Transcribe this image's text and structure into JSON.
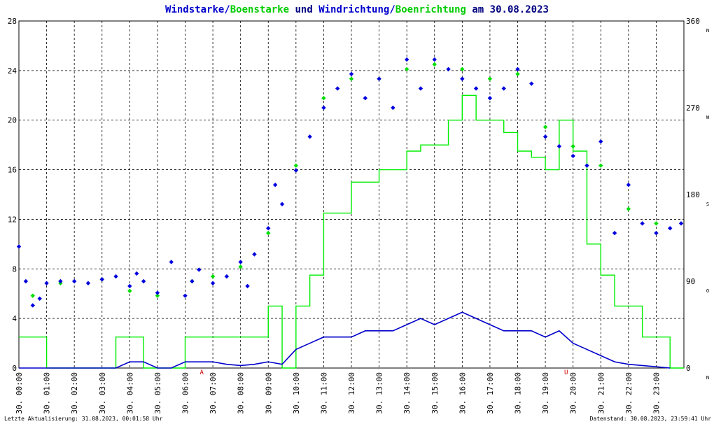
{
  "title": {
    "parts": [
      {
        "text": "Windstarke",
        "color": "#0000cc"
      },
      {
        "text": "/",
        "color": "#0000cc"
      },
      {
        "text": "Boenstarke",
        "color": "#00cc00"
      },
      {
        "text": " und ",
        "color": "#000080"
      },
      {
        "text": "Windrichtung",
        "color": "#0000cc"
      },
      {
        "text": "/",
        "color": "#0000cc"
      },
      {
        "text": "Boenrichtung",
        "color": "#00cc00"
      },
      {
        "text": " am 30.08.2023",
        "color": "#000080"
      }
    ]
  },
  "footer": {
    "left": "Letzte Aktualisierung: 31.08.2023, 00:01:58 Uhr",
    "right": "Datenstand: 30.08.2023, 23:59:41 Uhr"
  },
  "colors": {
    "wind": "#0000cc",
    "gust": "#00ee00",
    "dir_wind": "#0000dd",
    "dir_gust": "#00dd00",
    "grid": "#000000",
    "marker": "#cc0000"
  },
  "chart_data": {
    "type": "line",
    "xlim": [
      0,
      24
    ],
    "x_ticks": [
      "30. 00:00",
      "30. 01:00",
      "30. 02:00",
      "30. 03:00",
      "30. 04:00",
      "30. 05:00",
      "30. 06:00",
      "30. 07:00",
      "30. 08:00",
      "30. 09:00",
      "30. 10:00",
      "30. 11:00",
      "30. 12:00",
      "30. 13:00",
      "30. 14:00",
      "30. 15:00",
      "30. 16:00",
      "30. 17:00",
      "30. 18:00",
      "30. 19:00",
      "30. 20:00",
      "30. 21:00",
      "30. 22:00",
      "30. 23:00"
    ],
    "left_axis": {
      "ylim": [
        0,
        28
      ],
      "ticks": [
        0,
        4,
        8,
        12,
        16,
        20,
        24,
        28
      ]
    },
    "right_axis": {
      "ylim": [
        0,
        360
      ],
      "ticks": [
        {
          "value": 0,
          "label": "0",
          "dir": "N"
        },
        {
          "value": 90,
          "label": "90",
          "dir": "O"
        },
        {
          "value": 180,
          "label": "180",
          "dir": "S"
        },
        {
          "value": 270,
          "label": "270",
          "dir": "W"
        },
        {
          "value": 360,
          "label": "360",
          "dir": "N"
        }
      ]
    },
    "event_markers": [
      {
        "x": 6.6,
        "label": "A"
      },
      {
        "x": 19.75,
        "label": "U"
      }
    ],
    "series": [
      {
        "name": "Windstarke",
        "kind": "speed",
        "color": "#0000cc",
        "x": [
          0.0,
          0.5,
          1.0,
          1.5,
          2.0,
          2.5,
          3.0,
          3.5,
          4.0,
          4.5,
          5.0,
          5.5,
          6.0,
          6.5,
          7.0,
          7.5,
          8.0,
          8.5,
          9.0,
          9.5,
          10.0,
          10.5,
          11.0,
          11.5,
          12.0,
          12.5,
          13.0,
          13.5,
          14.0,
          14.5,
          15.0,
          15.5,
          16.0,
          16.5,
          17.0,
          17.5,
          18.0,
          18.5,
          19.0,
          19.5,
          20.0,
          20.5,
          21.0,
          21.5,
          22.0,
          22.5,
          23.0,
          23.5
        ],
        "values": [
          0,
          0,
          0,
          0,
          0,
          0,
          0,
          0,
          0.5,
          0.5,
          0,
          0,
          0.5,
          0.5,
          0.5,
          0.3,
          0.2,
          0.3,
          0.5,
          0.3,
          1.5,
          2.0,
          2.5,
          2.5,
          2.5,
          3.0,
          3.0,
          3.0,
          3.5,
          4.0,
          3.5,
          4.0,
          4.5,
          4.0,
          3.5,
          3.0,
          3.0,
          3.0,
          2.5,
          3.0,
          2.0,
          1.5,
          1.0,
          0.5,
          0.3,
          0.2,
          0.1,
          0
        ]
      },
      {
        "name": "Boenstarke",
        "kind": "speed",
        "color": "#00ee00",
        "x": [
          0.0,
          0.5,
          1.0,
          1.5,
          2.0,
          2.5,
          3.0,
          3.5,
          4.0,
          4.5,
          5.0,
          5.5,
          6.0,
          6.5,
          7.0,
          7.5,
          8.0,
          8.5,
          9.0,
          9.5,
          10.0,
          10.5,
          11.0,
          11.5,
          12.0,
          12.5,
          13.0,
          13.5,
          14.0,
          14.5,
          15.0,
          15.5,
          16.0,
          16.5,
          17.0,
          17.5,
          18.0,
          18.5,
          19.0,
          19.5,
          20.0,
          20.5,
          21.0,
          21.5,
          22.0,
          22.5,
          23.0,
          23.5
        ],
        "values": [
          2.5,
          2.5,
          0,
          0,
          0,
          0,
          0,
          2.5,
          2.5,
          0,
          0,
          0,
          2.5,
          2.5,
          2.5,
          2.5,
          2.5,
          2.5,
          5.0,
          0,
          5.0,
          7.5,
          12.5,
          12.5,
          15.0,
          15.0,
          16.0,
          16.0,
          17.5,
          18.0,
          18.0,
          20.0,
          22.0,
          20.0,
          20.0,
          19.0,
          17.5,
          17.0,
          16.0,
          20.0,
          17.5,
          10.0,
          7.5,
          5.0,
          5.0,
          2.5,
          2.5,
          0
        ]
      },
      {
        "name": "Windrichtung",
        "kind": "direction",
        "color": "#0000dd",
        "x": [
          0.0,
          0.25,
          0.5,
          0.75,
          1.0,
          1.5,
          2.0,
          2.5,
          3.0,
          3.5,
          4.0,
          4.25,
          4.5,
          5.0,
          5.5,
          6.0,
          6.25,
          6.5,
          7.0,
          7.5,
          8.0,
          8.25,
          8.5,
          9.0,
          9.25,
          9.5,
          10.0,
          10.5,
          11.0,
          11.5,
          12.0,
          12.5,
          13.0,
          13.5,
          14.0,
          14.5,
          15.0,
          15.5,
          16.0,
          16.5,
          17.0,
          17.5,
          18.0,
          18.5,
          19.0,
          19.5,
          20.0,
          20.5,
          21.0,
          21.5,
          22.0,
          22.5,
          23.0,
          23.5,
          23.9
        ],
        "values": [
          126,
          90,
          65,
          72,
          88,
          90,
          90,
          88,
          92,
          95,
          85,
          98,
          90,
          78,
          110,
          75,
          90,
          102,
          88,
          95,
          110,
          85,
          118,
          145,
          190,
          170,
          205,
          240,
          270,
          290,
          305,
          280,
          300,
          270,
          320,
          290,
          320,
          310,
          300,
          290,
          280,
          290,
          310,
          295,
          240,
          230,
          220,
          210,
          235,
          140,
          190,
          150,
          140,
          145,
          150
        ]
      },
      {
        "name": "Boenrichtung",
        "kind": "direction",
        "color": "#00dd00",
        "x": [
          0.5,
          1.5,
          3.0,
          4.0,
          5.0,
          6.25,
          7.0,
          8.0,
          9.0,
          10.0,
          11.0,
          12.0,
          13.0,
          14.0,
          15.0,
          16.0,
          17.0,
          18.0,
          19.0,
          20.0,
          21.0,
          22.0,
          23.0
        ],
        "values": [
          75,
          88,
          92,
          80,
          75,
          90,
          95,
          105,
          140,
          210,
          280,
          300,
          300,
          310,
          315,
          310,
          300,
          305,
          250,
          230,
          210,
          165,
          150
        ]
      }
    ]
  }
}
